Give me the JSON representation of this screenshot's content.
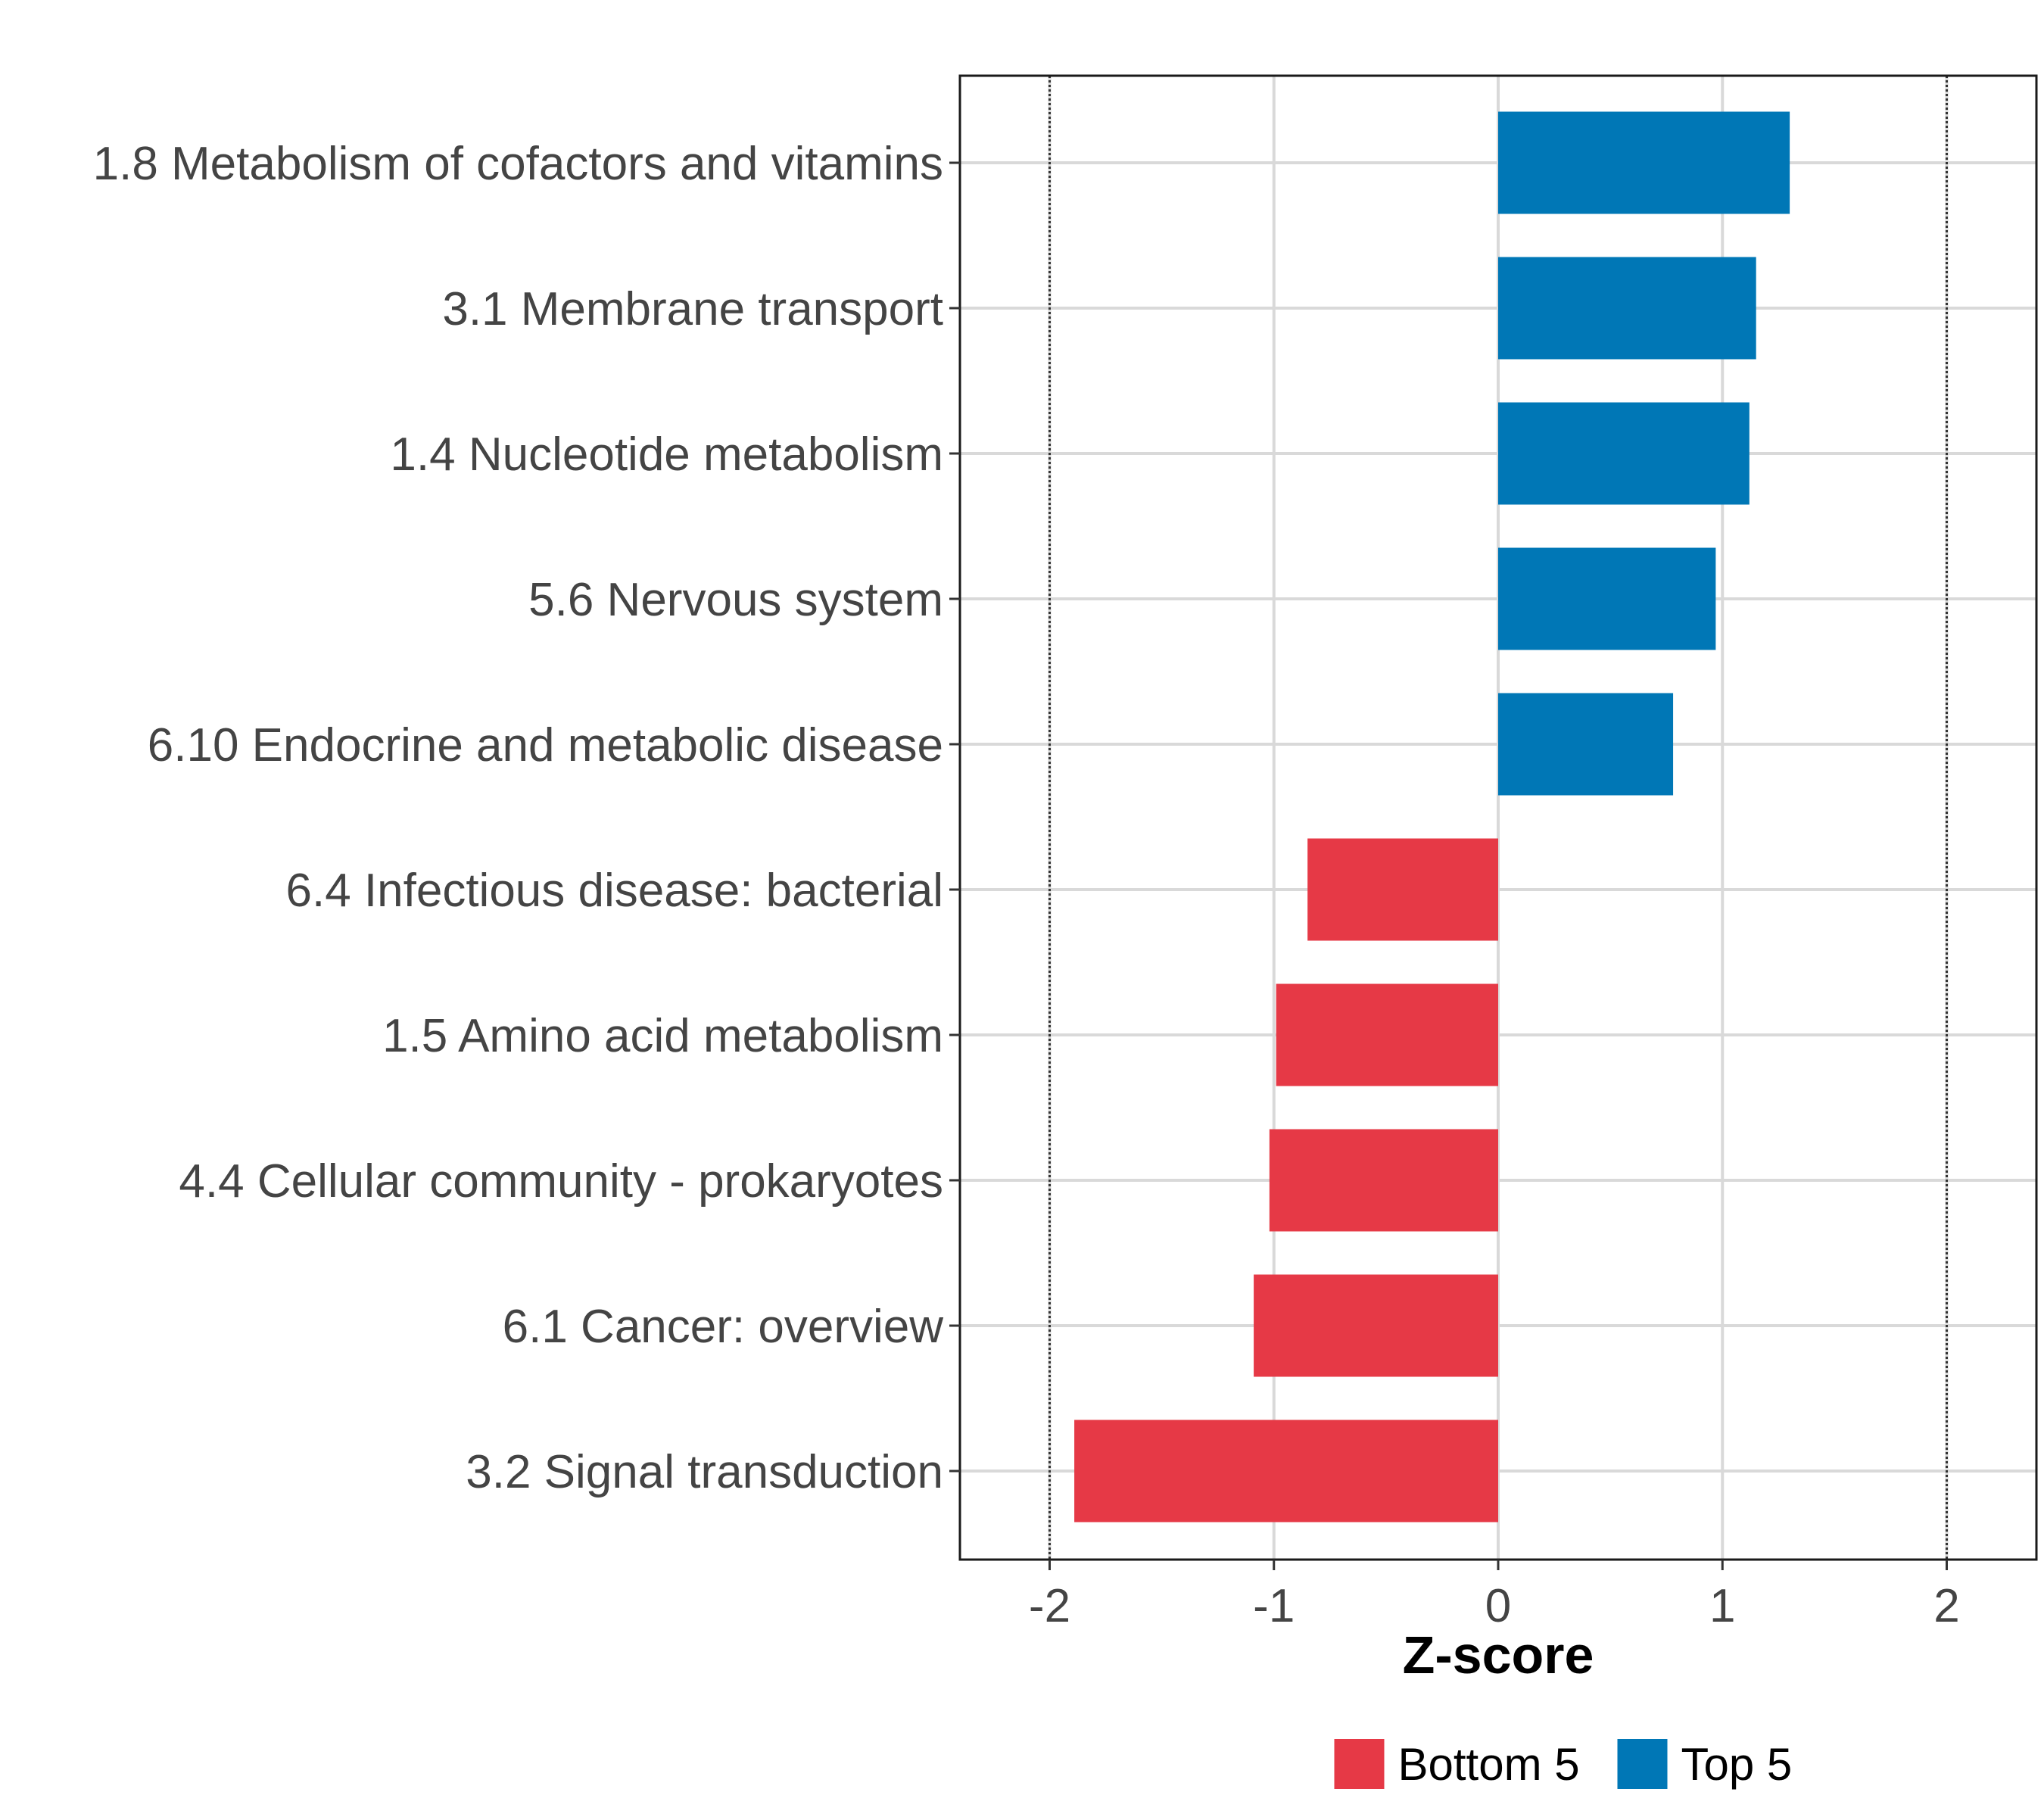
{
  "chart_data": {
    "type": "bar",
    "orientation": "horizontal",
    "categories": [
      "1.8 Metabolism of cofactors and vitamins",
      "3.1 Membrane transport",
      "1.4 Nucleotide metabolism",
      "5.6 Nervous system",
      "6.10 Endocrine and metabolic disease",
      "6.4 Infectious disease: bacterial",
      "1.5 Amino acid metabolism",
      "4.4 Cellular community - prokaryotes",
      "6.1 Cancer: overview",
      "3.2 Signal transduction"
    ],
    "values": [
      1.3,
      1.15,
      1.12,
      0.97,
      0.78,
      -0.85,
      -0.99,
      -1.02,
      -1.09,
      -1.89
    ],
    "groups": [
      "Top 5",
      "Top 5",
      "Top 5",
      "Top 5",
      "Top 5",
      "Bottom 5",
      "Bottom 5",
      "Bottom 5",
      "Bottom 5",
      "Bottom 5"
    ],
    "xlabel": "Z-score",
    "ylabel": "",
    "xlim": [
      -2.4,
      2.4
    ],
    "xticks": [
      -2,
      -1,
      0,
      1,
      2
    ],
    "xtick_labels": [
      "-2",
      "-1",
      "0",
      "1",
      "2"
    ],
    "reference_lines": [
      -2,
      2
    ],
    "grid": true,
    "legend": {
      "placement": "bottom",
      "entries": [
        {
          "label": "Bottom 5",
          "color": "#E63946"
        },
        {
          "label": "Top 5",
          "color": "#0077B6"
        }
      ]
    }
  }
}
